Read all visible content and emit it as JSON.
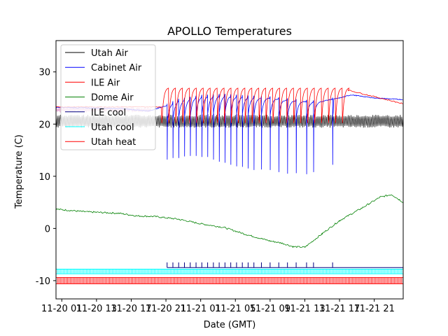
{
  "chart_data": {
    "type": "line",
    "title": "APOLLO Temperatures",
    "xlabel": "Date (GMT)",
    "ylabel": "Temperature (C)",
    "xlim": [
      -1,
      59
    ],
    "ylim": [
      -13.5,
      36
    ],
    "grid": false,
    "legend_position": "top-left",
    "x_unit": "hours since 11-20 00:00 GMT",
    "x_ticks": [
      {
        "x": 0,
        "label": "11-20 01"
      },
      {
        "x": 6,
        "label": "11-20 13"
      },
      {
        "x": 12,
        "label": "11-20 17"
      },
      {
        "x": 18,
        "label": "11-20 21"
      },
      {
        "x": 24,
        "label": "11-21 01"
      },
      {
        "x": 30,
        "label": "11-21 05"
      },
      {
        "x": 36,
        "label": "11-21 09"
      },
      {
        "x": 42,
        "label": "11-21 13"
      },
      {
        "x": 48,
        "label": "11-21 17"
      },
      {
        "x": 54,
        "label": "11-21 21"
      }
    ],
    "y_ticks": [
      -10,
      0,
      10,
      20,
      30
    ],
    "series": [
      {
        "name": "Utah Air",
        "color": "#000000",
        "pattern": "oscillation",
        "x_range": [
          -1,
          59
        ],
        "low": 19.5,
        "high": 21.6,
        "period": 0.25
      },
      {
        "name": "Cabinet Air",
        "color": "#0000ff",
        "x": [
          -1,
          10,
          15,
          18,
          20,
          24,
          28,
          32,
          36,
          40,
          44,
          48,
          50,
          54,
          59
        ],
        "y": [
          23.2,
          23.0,
          22.5,
          23.5,
          24.5,
          25.3,
          25.5,
          25.2,
          25.0,
          24.5,
          24.2,
          25.0,
          25.6,
          25.0,
          24.7
        ],
        "spikes_at": [
          18.2,
          19.2,
          20.2,
          21.2,
          22.2,
          23.2,
          24.2,
          25.2,
          26.2,
          27.2,
          28.2,
          29.2,
          30.2,
          31.2,
          32.2,
          33.2,
          34.5,
          36.0,
          37.5,
          39.0,
          40.5,
          42.3,
          43.5,
          46.8
        ],
        "spike_to": [
          13.2,
          13.5,
          13.5,
          13.8,
          13.9,
          13.9,
          13.7,
          13.7,
          13.2,
          12.8,
          12.6,
          12.2,
          11.9,
          11.8,
          11.5,
          11.2,
          11.3,
          11.2,
          10.8,
          10.5,
          10.6,
          10.4,
          10.8,
          12.2
        ]
      },
      {
        "name": "ILE Air",
        "color": "#ff0000",
        "pattern": "sawtooth",
        "x_range": [
          17.3,
          49.5
        ],
        "period": 1.2,
        "low": 20.2,
        "high": 26.9,
        "tail_x": [
          49.5,
          59
        ],
        "tail_y": [
          26.5,
          23.9
        ]
      },
      {
        "name": "Dome Air",
        "color": "#008000",
        "x": [
          -1,
          4,
          10,
          13,
          16,
          20,
          24,
          28,
          32,
          36,
          38,
          40,
          42,
          45,
          48,
          52,
          55,
          57,
          59
        ],
        "y": [
          3.7,
          3.2,
          2.9,
          2.4,
          2.3,
          1.8,
          0.9,
          0.2,
          -1.2,
          -2.4,
          -2.8,
          -3.5,
          -3.6,
          -1.0,
          1.5,
          4.0,
          6.0,
          6.5,
          5.0
        ]
      },
      {
        "name": "ILE cool",
        "color": "#000080",
        "pattern": "pulses",
        "baseline": -7.5,
        "peak": -6.5,
        "pulses_at": [
          18.2,
          19.2,
          20.2,
          21.2,
          22.2,
          23.2,
          24.2,
          25.2,
          26.2,
          27.2,
          28.2,
          29.2,
          30.2,
          31.2,
          32.2,
          33.2,
          34.5,
          36.0,
          37.5,
          39.0,
          40.5,
          42.3,
          43.5,
          46.8
        ],
        "x_range": [
          18.2,
          59
        ]
      },
      {
        "name": "Utah cool",
        "color": "#00ffff",
        "pattern": "dense-pulses",
        "x_range": [
          -1,
          59
        ],
        "low": -8.7,
        "high": -7.8,
        "period": 0.25
      },
      {
        "name": "Utah heat",
        "color": "#ff0000",
        "pattern": "dense-pulses",
        "x_range": [
          -1,
          59
        ],
        "low": -10.6,
        "high": -9.4,
        "period": 0.25
      }
    ],
    "early_overlay": {
      "note": "pale pink/grey band between legend and sawtooth start",
      "x_range": [
        -1,
        15.5
      ],
      "y": 22.8,
      "color": "#e8b4d8"
    }
  }
}
